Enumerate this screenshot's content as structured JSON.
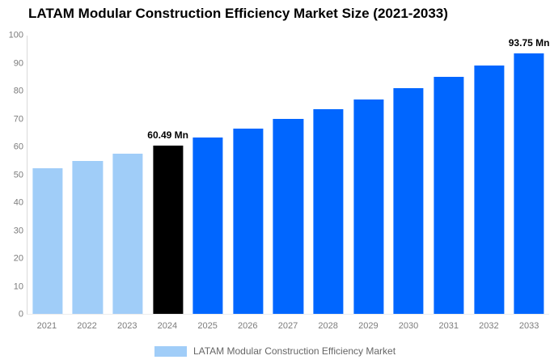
{
  "chart_data": {
    "type": "bar",
    "title": "LATAM Modular Construction Efficiency Market Size (2021-2033)",
    "categories": [
      "2021",
      "2022",
      "2023",
      "2024",
      "2025",
      "2026",
      "2027",
      "2028",
      "2029",
      "2030",
      "2031",
      "2032",
      "2033"
    ],
    "series": [
      {
        "name": "LATAM Modular Construction Efficiency Market",
        "values": [
          52.26,
          54.87,
          57.61,
          60.49,
          63.51,
          66.68,
          70.01,
          73.51,
          77.18,
          81.04,
          85.09,
          89.34,
          93.75
        ]
      }
    ],
    "value_labels": [
      "",
      "",
      "",
      "60.49 Mn",
      "",
      "",
      "",
      "",
      "",
      "",
      "",
      "",
      "93.75 Mn"
    ],
    "bar_colors": [
      "#A0CDF8",
      "#A0CDF8",
      "#A0CDF8",
      "#000000",
      "#0066FF",
      "#0066FF",
      "#0066FF",
      "#0066FF",
      "#0066FF",
      "#0066FF",
      "#0066FF",
      "#0066FF",
      "#0066FF"
    ],
    "ylim": [
      0,
      100
    ],
    "yticks": [
      0,
      10,
      20,
      30,
      40,
      50,
      60,
      70,
      80,
      90,
      100
    ],
    "xlabel": "",
    "ylabel": "",
    "grid": false,
    "legend_position": "bottom"
  },
  "legend": {
    "swatch_color": "#A0CDF8",
    "label": "LATAM Modular Construction Efficiency Market"
  }
}
